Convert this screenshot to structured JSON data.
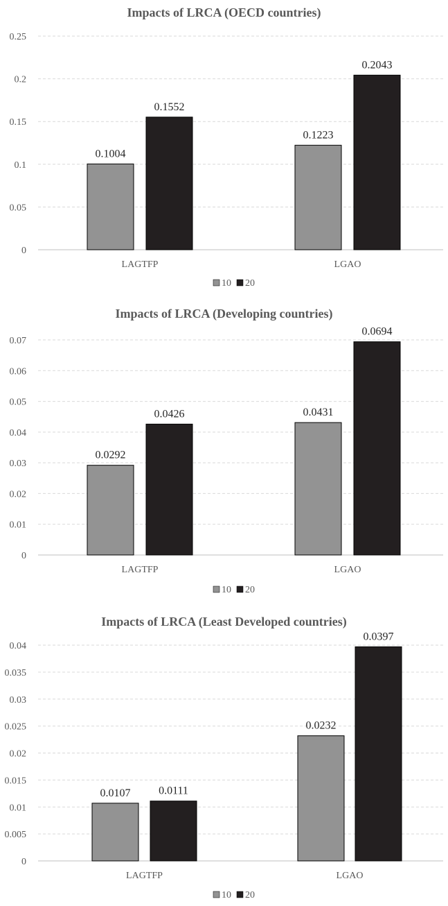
{
  "chart_data": [
    {
      "type": "bar",
      "title": "Impacts of LRCA (OECD countries)",
      "categories": [
        "LAGTFP",
        "LGAO"
      ],
      "series": [
        {
          "name": "10",
          "values": [
            0.1004,
            0.1223
          ],
          "color": "#939393"
        },
        {
          "name": "20",
          "values": [
            0.1552,
            0.2043
          ],
          "color": "#231f20"
        }
      ],
      "data_labels": [
        [
          "0.1004",
          "0.1223"
        ],
        [
          "0.1552",
          "0.2043"
        ]
      ],
      "ylim": [
        0,
        0.25
      ],
      "yticks": [
        0,
        0.05,
        0.1,
        0.15,
        0.2,
        0.25
      ],
      "ytick_labels": [
        "0",
        "0.05",
        "0.1",
        "0.15",
        "0.2",
        "0.25"
      ],
      "grid": true,
      "legend": "bottom"
    },
    {
      "type": "bar",
      "title": "Impacts of LRCA (Developing countries)",
      "categories": [
        "LAGTFP",
        "LGAO"
      ],
      "series": [
        {
          "name": "10",
          "values": [
            0.0292,
            0.0431
          ],
          "color": "#939393"
        },
        {
          "name": "20",
          "values": [
            0.0426,
            0.0694
          ],
          "color": "#231f20"
        }
      ],
      "data_labels": [
        [
          "0.0292",
          "0.0431"
        ],
        [
          "0.0426",
          "0.0694"
        ]
      ],
      "ylim": [
        0,
        0.07
      ],
      "yticks": [
        0,
        0.01,
        0.02,
        0.03,
        0.04,
        0.05,
        0.06,
        0.07
      ],
      "ytick_labels": [
        "0",
        "0.01",
        "0.02",
        "0.03",
        "0.04",
        "0.05",
        "0.06",
        "0.07"
      ],
      "grid": true,
      "legend": "bottom"
    },
    {
      "type": "bar",
      "title": "Impacts of LRCA (Least Developed countries)",
      "categories": [
        "LAGTFP",
        "LGAO"
      ],
      "series": [
        {
          "name": "10",
          "values": [
            0.0107,
            0.0232
          ],
          "color": "#939393"
        },
        {
          "name": "20",
          "values": [
            0.0111,
            0.0397
          ],
          "color": "#231f20"
        }
      ],
      "data_labels": [
        [
          "0.0107",
          "0.0232"
        ],
        [
          "0.0111",
          "0.0397"
        ]
      ],
      "ylim": [
        0,
        0.04
      ],
      "yticks": [
        0,
        0.005,
        0.01,
        0.015,
        0.02,
        0.025,
        0.03,
        0.035,
        0.04
      ],
      "ytick_labels": [
        "0",
        "0.005",
        "0.01",
        "0.015",
        "0.02",
        "0.025",
        "0.03",
        "0.035",
        "0.04"
      ],
      "grid": true,
      "legend": "bottom"
    }
  ]
}
